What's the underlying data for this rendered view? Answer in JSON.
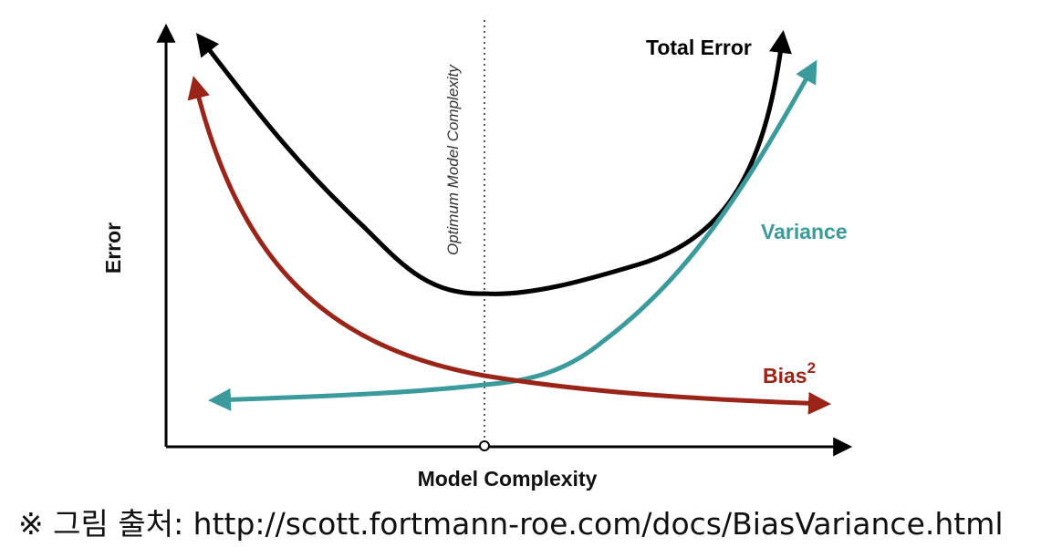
{
  "diagram": {
    "axes": {
      "y_label": "Error",
      "x_label": "Model Complexity"
    },
    "optimum_label": "Optimum Model Complexity",
    "curves": {
      "total_error": {
        "label": "Total Error",
        "color": "#000000"
      },
      "variance": {
        "label": "Variance",
        "color": "#3a9a9c"
      },
      "bias": {
        "label": "Bias",
        "superscript": "2",
        "color": "#9b2418"
      }
    }
  },
  "caption": {
    "text": "※ 그림 출처: http://scott.fortmann-roe.com/docs/BiasVariance.html"
  }
}
